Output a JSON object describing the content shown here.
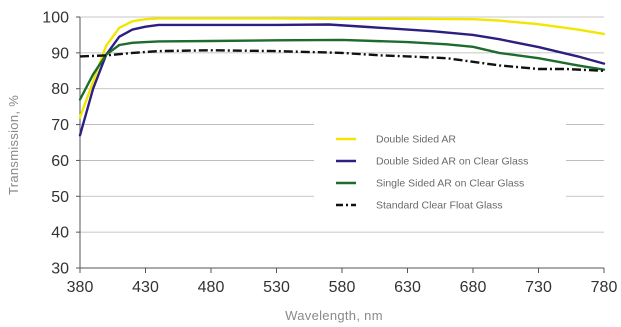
{
  "chart_data": {
    "type": "line",
    "title": "",
    "xlabel": "Wavelength, nm",
    "ylabel": "Transmission, %",
    "xlim": [
      380,
      780
    ],
    "ylim": [
      30,
      100
    ],
    "x_ticks": [
      380,
      430,
      480,
      530,
      580,
      630,
      680,
      730,
      780
    ],
    "y_ticks": [
      30,
      40,
      50,
      60,
      70,
      80,
      90,
      100
    ],
    "grid": "horizontal",
    "legend_position": "center-right",
    "series": [
      {
        "name": "Double Sided AR",
        "color": "#f2e600",
        "dash": "solid",
        "x": [
          380,
          390,
          400,
          410,
          420,
          430,
          440,
          460,
          480,
          530,
          580,
          630,
          680,
          700,
          730,
          760,
          780
        ],
        "y": [
          72,
          82,
          92,
          97,
          98.8,
          99.4,
          99.6,
          99.6,
          99.6,
          99.6,
          99.5,
          99.5,
          99.4,
          99,
          98,
          96.5,
          95.3
        ]
      },
      {
        "name": "Double Sided AR on Clear Glass",
        "color": "#2b2080",
        "dash": "solid",
        "x": [
          380,
          390,
          400,
          410,
          420,
          430,
          440,
          460,
          480,
          530,
          570,
          600,
          630,
          650,
          680,
          700,
          730,
          760,
          780
        ],
        "y": [
          67,
          80,
          89.5,
          94.5,
          96.5,
          97.3,
          97.8,
          97.8,
          97.8,
          97.8,
          97.9,
          97.2,
          96.5,
          96,
          95,
          93.8,
          91.6,
          89,
          87
        ]
      },
      {
        "name": "Single Sided AR on Clear Glass",
        "color": "#1e6b2e",
        "dash": "solid",
        "x": [
          380,
          390,
          400,
          410,
          420,
          430,
          440,
          480,
          530,
          580,
          630,
          660,
          680,
          700,
          730,
          760,
          780
        ],
        "y": [
          77,
          84,
          89.5,
          92.2,
          92.8,
          93,
          93.2,
          93.3,
          93.5,
          93.6,
          93,
          92.4,
          91.7,
          90,
          88.5,
          86.5,
          85.3
        ]
      },
      {
        "name": "Standard Clear Float Glass",
        "color": "#111111",
        "dash": "dashdot",
        "x": [
          380,
          400,
          420,
          440,
          480,
          530,
          580,
          610,
          630,
          660,
          680,
          700,
          730,
          750,
          780
        ],
        "y": [
          89,
          89.3,
          90,
          90.5,
          90.7,
          90.5,
          90,
          89.3,
          89,
          88.5,
          87.5,
          86.5,
          85.5,
          85.5,
          85
        ]
      }
    ]
  }
}
